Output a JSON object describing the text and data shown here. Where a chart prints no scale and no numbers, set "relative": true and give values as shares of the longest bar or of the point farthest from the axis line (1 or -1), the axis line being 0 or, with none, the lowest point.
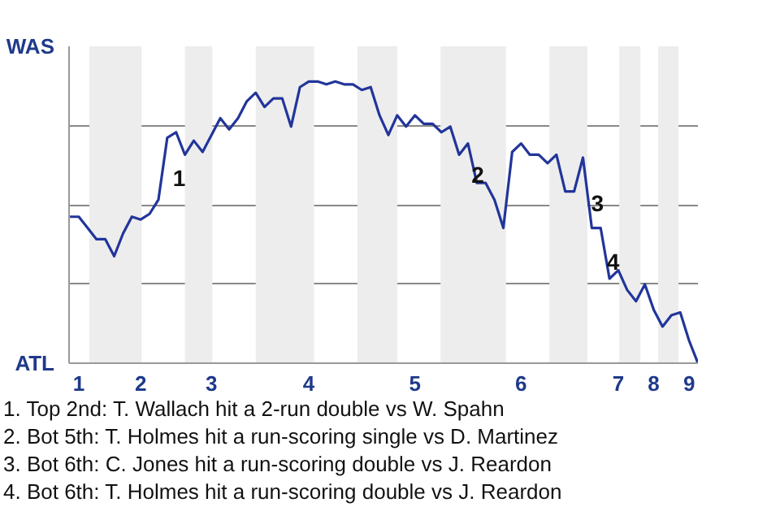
{
  "chart_data": {
    "type": "line",
    "relative": true,
    "categories": [
      null,
      "1",
      null,
      null,
      null,
      null,
      null,
      null,
      "2",
      null,
      null,
      null,
      null,
      null,
      null,
      null,
      "3",
      null,
      null,
      null,
      null,
      null,
      null,
      null,
      null,
      null,
      null,
      "4",
      null,
      null,
      null,
      null,
      null,
      null,
      null,
      null,
      null,
      null,
      null,
      "5",
      null,
      null,
      null,
      null,
      null,
      null,
      null,
      null,
      null,
      null,
      null,
      "6",
      null,
      null,
      null,
      null,
      null,
      null,
      null,
      null,
      null,
      null,
      "7",
      null,
      null,
      null,
      "8",
      null,
      null,
      null,
      "9",
      null
    ],
    "series": [
      {
        "color": "#22359a",
        "values": [
          0.52,
          0.52,
          0.48,
          0.44,
          0.44,
          0.38,
          0.46,
          0.52,
          0.51,
          0.53,
          0.58,
          0.8,
          0.82,
          0.74,
          0.79,
          0.75,
          0.81,
          0.87,
          0.83,
          0.87,
          0.93,
          0.96,
          0.91,
          0.94,
          0.94,
          0.84,
          0.98,
          1,
          1,
          0.99,
          1,
          0.99,
          0.99,
          0.97,
          0.98,
          0.88,
          0.81,
          0.88,
          0.84,
          0.88,
          0.85,
          0.85,
          0.82,
          0.84,
          0.74,
          0.78,
          0.64,
          0.64,
          0.58,
          0.48,
          0.75,
          0.78,
          0.74,
          0.74,
          0.71,
          0.74,
          0.61,
          0.61,
          0.73,
          0.48,
          0.48,
          0.3,
          0.33,
          0.26,
          0.22,
          0.28,
          0.19,
          0.13,
          0.17,
          0.18,
          0.08,
          0
        ]
      }
    ],
    "grid": "y",
    "marker": "none",
    "line_style": "solid",
    "annotations": [
      "WAS",
      "ATL",
      "1",
      "2",
      "3",
      "4",
      "1. Top 2nd: T. Wallach hit a 2-run double vs W. Spahn",
      "2. Bot 5th: T. Holmes hit a run-scoring single vs D. Martinez",
      "3. Bot 6th: C. Jones hit a run-scoring double vs J. Reardon",
      "4. Bot 6th: T. Holmes hit a run-scoring double vs J. Reardon"
    ]
  }
}
